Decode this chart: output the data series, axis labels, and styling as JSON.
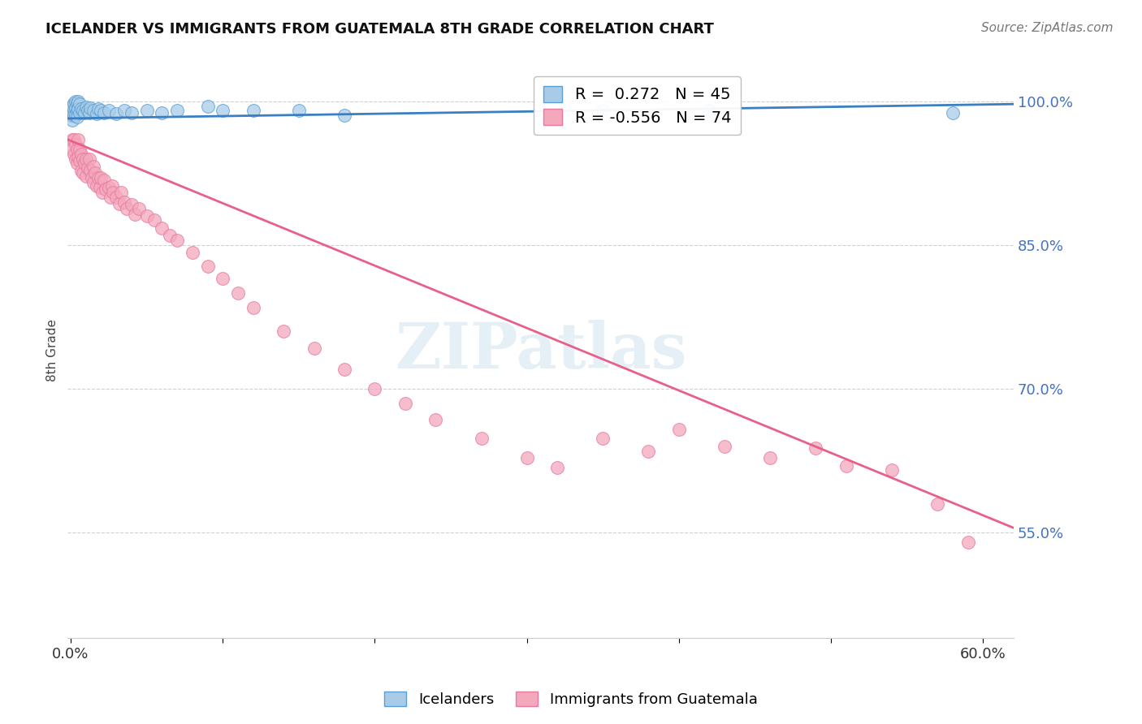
{
  "title": "ICELANDER VS IMMIGRANTS FROM GUATEMALA 8TH GRADE CORRELATION CHART",
  "source": "Source: ZipAtlas.com",
  "ylabel": "8th Grade",
  "ytick_labels": [
    "55.0%",
    "70.0%",
    "85.0%",
    "100.0%"
  ],
  "ytick_values": [
    0.55,
    0.7,
    0.85,
    1.0
  ],
  "ylim": [
    0.44,
    1.04
  ],
  "xlim": [
    -0.002,
    0.62
  ],
  "legend_blue_label": "Icelanders",
  "legend_pink_label": "Immigrants from Guatemala",
  "R_blue": 0.272,
  "N_blue": 45,
  "R_pink": -0.556,
  "N_pink": 74,
  "blue_color": "#a8cce8",
  "pink_color": "#f4a8bc",
  "blue_edge_color": "#5a9fd4",
  "pink_edge_color": "#e87aa0",
  "blue_line_color": "#3a7fc1",
  "pink_line_color": "#e8608a",
  "blue_line_x": [
    -0.002,
    0.62
  ],
  "blue_line_y": [
    0.982,
    0.997
  ],
  "pink_line_x": [
    -0.002,
    0.62
  ],
  "pink_line_y": [
    0.96,
    0.555
  ],
  "blue_scatter_x": [
    0.0,
    0.0,
    0.001,
    0.001,
    0.001,
    0.002,
    0.002,
    0.002,
    0.003,
    0.003,
    0.003,
    0.004,
    0.004,
    0.004,
    0.005,
    0.005,
    0.006,
    0.006,
    0.007,
    0.008,
    0.009,
    0.01,
    0.011,
    0.012,
    0.013,
    0.015,
    0.017,
    0.018,
    0.02,
    0.022,
    0.025,
    0.03,
    0.035,
    0.04,
    0.05,
    0.06,
    0.07,
    0.09,
    0.1,
    0.12,
    0.15,
    0.18,
    0.35,
    0.42,
    0.58
  ],
  "blue_scatter_y": [
    0.99,
    0.985,
    0.995,
    0.98,
    0.995,
    0.998,
    0.99,
    0.985,
    1.0,
    0.993,
    0.985,
    0.998,
    0.99,
    0.984,
    1.0,
    0.992,
    0.997,
    0.988,
    0.992,
    0.99,
    0.988,
    0.994,
    0.99,
    0.988,
    0.993,
    0.99,
    0.987,
    0.992,
    0.99,
    0.988,
    0.99,
    0.987,
    0.99,
    0.988,
    0.99,
    0.988,
    0.99,
    0.995,
    0.99,
    0.99,
    0.99,
    0.985,
    0.99,
    0.99,
    0.988
  ],
  "pink_scatter_x": [
    0.001,
    0.001,
    0.002,
    0.002,
    0.003,
    0.003,
    0.004,
    0.004,
    0.005,
    0.005,
    0.006,
    0.006,
    0.007,
    0.007,
    0.008,
    0.008,
    0.009,
    0.01,
    0.01,
    0.011,
    0.012,
    0.013,
    0.014,
    0.015,
    0.015,
    0.016,
    0.017,
    0.018,
    0.019,
    0.02,
    0.021,
    0.022,
    0.023,
    0.025,
    0.026,
    0.027,
    0.028,
    0.03,
    0.032,
    0.033,
    0.035,
    0.037,
    0.04,
    0.042,
    0.045,
    0.05,
    0.055,
    0.06,
    0.065,
    0.07,
    0.08,
    0.09,
    0.1,
    0.11,
    0.12,
    0.14,
    0.16,
    0.18,
    0.2,
    0.22,
    0.24,
    0.27,
    0.3,
    0.32,
    0.35,
    0.38,
    0.4,
    0.43,
    0.46,
    0.49,
    0.51,
    0.54,
    0.57,
    0.59
  ],
  "pink_scatter_y": [
    0.96,
    0.95,
    0.96,
    0.945,
    0.955,
    0.94,
    0.95,
    0.935,
    0.96,
    0.942,
    0.95,
    0.938,
    0.945,
    0.928,
    0.94,
    0.925,
    0.935,
    0.94,
    0.922,
    0.93,
    0.94,
    0.928,
    0.92,
    0.932,
    0.915,
    0.925,
    0.912,
    0.92,
    0.91,
    0.92,
    0.905,
    0.918,
    0.908,
    0.91,
    0.9,
    0.912,
    0.905,
    0.9,
    0.893,
    0.905,
    0.895,
    0.888,
    0.892,
    0.882,
    0.888,
    0.88,
    0.876,
    0.868,
    0.86,
    0.855,
    0.842,
    0.828,
    0.815,
    0.8,
    0.785,
    0.76,
    0.742,
    0.72,
    0.7,
    0.685,
    0.668,
    0.648,
    0.628,
    0.618,
    0.648,
    0.635,
    0.658,
    0.64,
    0.628,
    0.638,
    0.62,
    0.615,
    0.58,
    0.54
  ],
  "watermark": "ZIPatlas",
  "background_color": "#ffffff",
  "grid_color": "#d0d0d0"
}
